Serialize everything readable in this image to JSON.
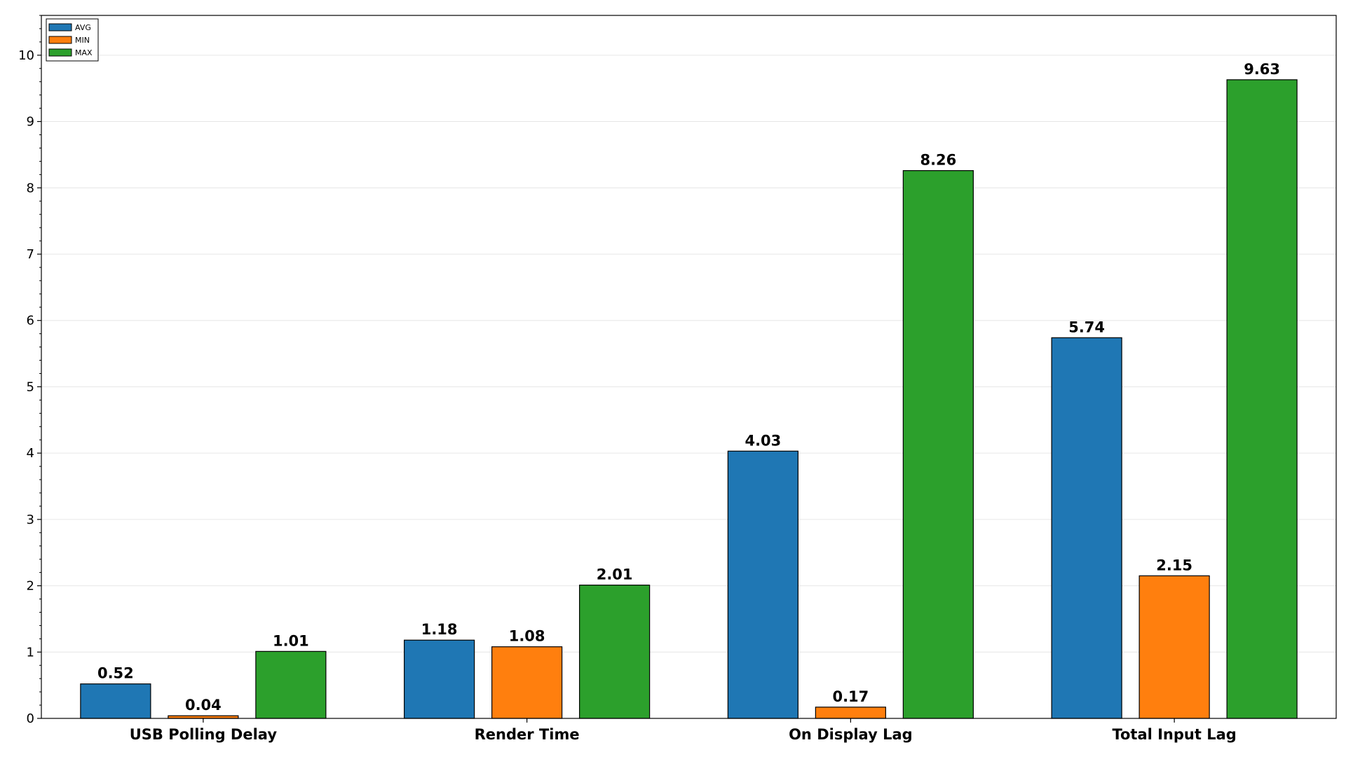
{
  "chart_data": {
    "type": "bar",
    "title": "",
    "xlabel": "",
    "ylabel": "",
    "categories": [
      "USB Polling Delay",
      "Render Time",
      "On Display Lag",
      "Total Input Lag"
    ],
    "series": [
      {
        "name": "AVG",
        "color": "#1f77b4",
        "values": [
          0.52,
          1.18,
          4.03,
          5.74
        ]
      },
      {
        "name": "MIN",
        "color": "#ff7f0e",
        "values": [
          0.04,
          1.08,
          0.17,
          2.15
        ]
      },
      {
        "name": "MAX",
        "color": "#2ca02c",
        "values": [
          1.01,
          2.01,
          8.26,
          9.63
        ]
      }
    ],
    "ylim": [
      0,
      10.6
    ],
    "yticks": [
      "0",
      "1",
      "2",
      "3",
      "4",
      "5",
      "6",
      "7",
      "8",
      "9",
      "10"
    ],
    "grid": true,
    "legend_position": "top-left",
    "data_labels": true
  }
}
